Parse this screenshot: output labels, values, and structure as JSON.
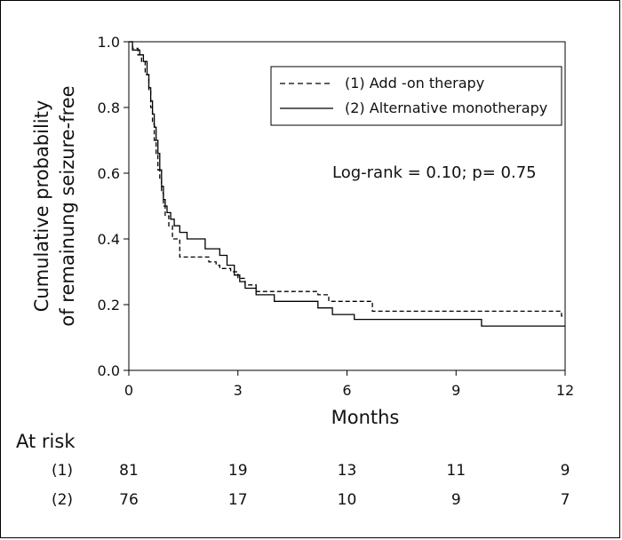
{
  "chart_data": {
    "type": "line",
    "subtype": "kaplan-meier step",
    "xlabel": "Months",
    "ylabel_line1": "Cumulative probability",
    "ylabel_line2": "of remainung seizure-free",
    "xlim": [
      0,
      12
    ],
    "ylim": [
      0,
      1
    ],
    "x_ticks": [
      "0",
      "3",
      "6",
      "9",
      "12"
    ],
    "y_ticks": [
      "0.0",
      "0.2",
      "0.4",
      "0.6",
      "0.8",
      "1.0"
    ],
    "grid": false,
    "legend_position": "top-right",
    "annotation": "Log-rank = 0.10; p= 0.75",
    "series": [
      {
        "name": "(1) Add -on therapy",
        "style": "dashed",
        "color": "#000000",
        "x": [
          0,
          0.1,
          0.25,
          0.35,
          0.45,
          0.55,
          0.6,
          0.65,
          0.7,
          0.75,
          0.8,
          0.85,
          0.9,
          0.95,
          1.0,
          1.1,
          1.2,
          1.4,
          2.2,
          2.4,
          2.5,
          2.8,
          3.0,
          3.2,
          3.5,
          5.2,
          5.5,
          6.7,
          11.9,
          12.0
        ],
        "y": [
          1.0,
          0.98,
          0.96,
          0.94,
          0.9,
          0.85,
          0.8,
          0.75,
          0.7,
          0.66,
          0.61,
          0.58,
          0.54,
          0.5,
          0.47,
          0.44,
          0.4,
          0.345,
          0.33,
          0.32,
          0.31,
          0.3,
          0.28,
          0.26,
          0.24,
          0.23,
          0.21,
          0.18,
          0.165,
          0.165
        ]
      },
      {
        "name": "(2) Alternative monotherapy",
        "style": "solid",
        "color": "#000000",
        "x": [
          0,
          0.1,
          0.3,
          0.4,
          0.5,
          0.55,
          0.6,
          0.65,
          0.7,
          0.75,
          0.8,
          0.85,
          0.9,
          0.95,
          1.0,
          1.05,
          1.15,
          1.25,
          1.4,
          1.6,
          2.1,
          2.5,
          2.7,
          2.9,
          3.05,
          3.2,
          3.5,
          4.0,
          5.2,
          5.6,
          6.2,
          9.7,
          12.0
        ],
        "y": [
          1.0,
          0.975,
          0.96,
          0.94,
          0.9,
          0.86,
          0.82,
          0.78,
          0.74,
          0.7,
          0.66,
          0.61,
          0.56,
          0.52,
          0.5,
          0.48,
          0.46,
          0.44,
          0.42,
          0.4,
          0.37,
          0.35,
          0.32,
          0.29,
          0.27,
          0.25,
          0.23,
          0.21,
          0.19,
          0.17,
          0.155,
          0.135,
          0.135
        ]
      }
    ],
    "at_risk": {
      "title": "At risk",
      "rows": [
        {
          "label": "(1)",
          "values": [
            "81",
            "19",
            "13",
            "11",
            "9"
          ]
        },
        {
          "label": "(2)",
          "values": [
            "76",
            "17",
            "10",
            "9",
            "7"
          ]
        }
      ]
    }
  }
}
